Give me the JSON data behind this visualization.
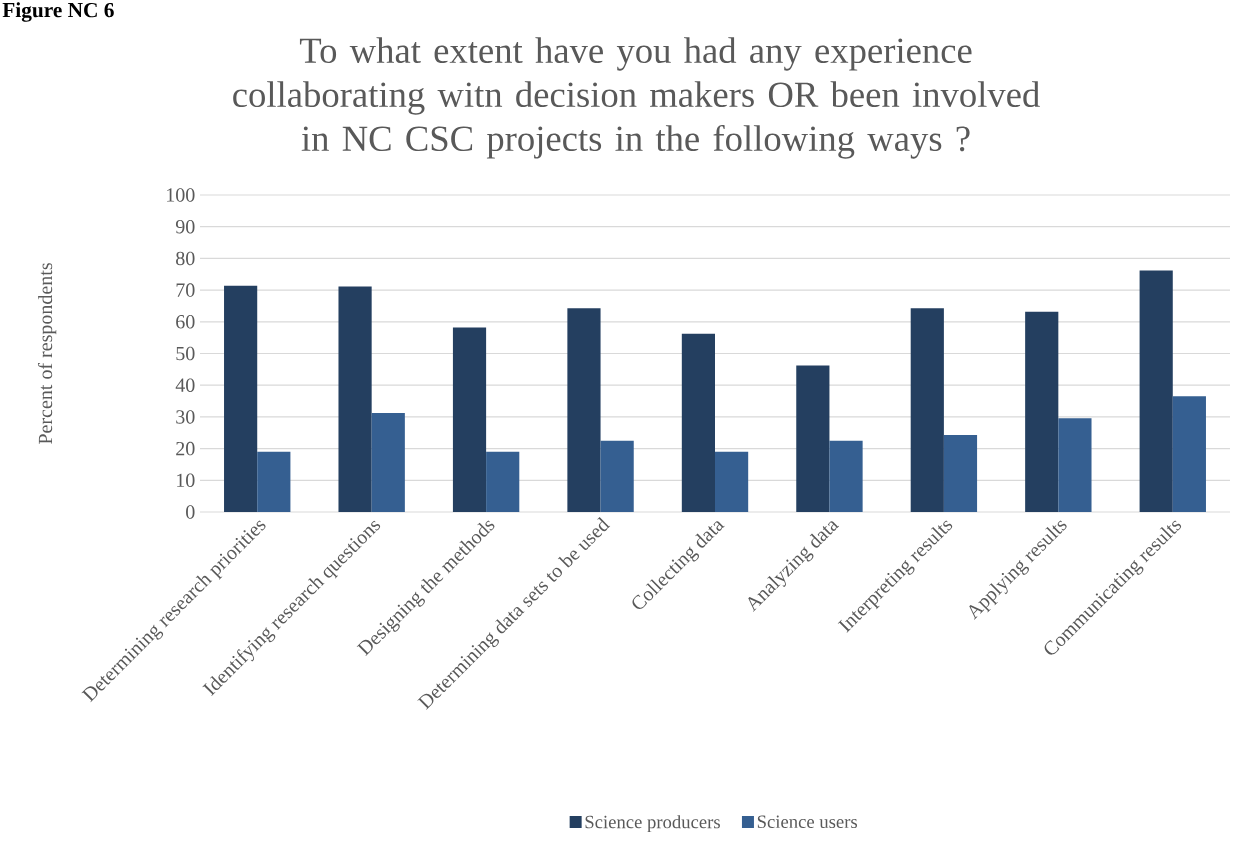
{
  "chart_data": {
    "type": "bar",
    "title": "To what extent have you had any experience collaborating witn decision makers OR been involved in NC CSC projects in the following ways ?",
    "ylabel": "Percent of respondents",
    "annotations": [
      "Figure NC 6"
    ],
    "categories": [
      "Determining research priorities",
      "Identifying research questions",
      "Designing the methods",
      "Determining data sets to be used",
      "Collecting data",
      "Analyzing data",
      "Interpreting results",
      "Applying results",
      "Communicating results"
    ],
    "series": [
      {
        "name": "Science producers",
        "color": "#243f60",
        "values": [
          71.4,
          71.1,
          58.2,
          64.3,
          56.2,
          46.2,
          64.3,
          63.2,
          76.2
        ]
      },
      {
        "name": "Science users",
        "color": "#355f91",
        "values": [
          19.0,
          31.2,
          19.0,
          22.5,
          19.0,
          22.5,
          24.3,
          29.6,
          36.5
        ]
      }
    ],
    "ylim": [
      0,
      100
    ],
    "yticks": [
      0,
      10,
      20,
      30,
      40,
      50,
      60,
      70,
      80,
      90,
      100
    ],
    "grid": "y",
    "legend": "bottom"
  }
}
